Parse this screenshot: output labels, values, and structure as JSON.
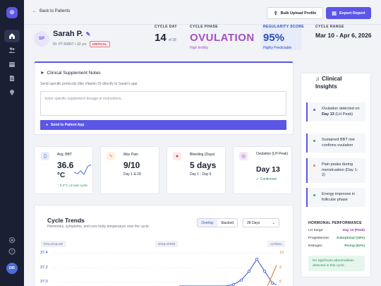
{
  "sidebar": {
    "logo_glyph": "⊕",
    "avatar": "DR"
  },
  "header": {
    "back": "Back to Patients",
    "bulk": "Bulk Upload Profile",
    "export": "Export Report"
  },
  "patient": {
    "initials": "SP",
    "name": "Sarah P.",
    "meta": "ID: PT-50807 • 32 yrs",
    "badge": "CRITICAL"
  },
  "stats": {
    "cycle_day": {
      "label": "CYCLE DAY",
      "value": "14",
      "suffix": "of 28"
    },
    "phase": {
      "label": "CYCLE PHASE",
      "value": "OVULATION",
      "sub": "High fertility"
    },
    "regularity": {
      "label": "REGULARITY SCORE",
      "value": "95%",
      "sub": "Highly Predictable"
    },
    "range": {
      "label": "CYCLE RANGE",
      "value": "Mar 10 - Apr 6, 2026"
    }
  },
  "notes": {
    "title": "Clinical Supplement Notes",
    "desc": "Send specific protocols (like Vitamin D) directly to Sarah's app.",
    "placeholder": "Enter specific supplement dosage or instructions...",
    "send": "Send to Patient App"
  },
  "cards": [
    {
      "label": "Avg. BBT",
      "value": "36.6",
      "unit": "°C",
      "foot": "↑ 0.3°C vs last cycle"
    },
    {
      "label": "Max Pain",
      "value": "9/10",
      "foot": "Day 1 & 28"
    },
    {
      "label": "Bleeding (Days)",
      "value": "5 days",
      "foot": "Day 1 - Day 5"
    },
    {
      "label": "Ovulation (LH Peak)",
      "value": "Day 13",
      "foot": "✓ Confirmed"
    }
  ],
  "trends": {
    "title": "Cycle Trends",
    "sub": "Hormones, symptoms, and core body temperature over the cycle.",
    "seg_overlay": "Overlay",
    "seg_stacked": "Stacked",
    "range": "28 Days",
    "phase_follicular": "FOLLICULAR",
    "phase_ovulation": "OVULATION",
    "phase_luteal": "LUTEAL"
  },
  "chart_data": {
    "type": "line",
    "y_left_ticks": [
      "37.4",
      "37.2",
      "37.0"
    ],
    "y_right_ticks": [
      "10",
      "8",
      "6"
    ],
    "series": [
      {
        "values": [
          0,
          0,
          0,
          0,
          0,
          0,
          0,
          0.5,
          2,
          5,
          9,
          5,
          1,
          0
        ]
      }
    ]
  },
  "insights": {
    "title_1": "Clinical",
    "title_2": "Insights",
    "items": [
      {
        "text_pre": "Ovulation detected on ",
        "bold": "Day 13",
        "text_post": " (LH Peak)",
        "color": "#5b56e6"
      },
      {
        "text": "Sustained BBT rise confirms ovulation",
        "color": "#2ea86a"
      },
      {
        "text": "Pain peaks during menstruation (Day 1-2)",
        "color": "#e08a2e"
      },
      {
        "text": "Energy improves in follicular phase",
        "color": "#2ea86a"
      }
    ],
    "hp_title": "HORMONAL PERFORMANCE",
    "hp": [
      {
        "k": "LH Surge:",
        "v": "Day 13 (Peak)",
        "color": "#9a2fb0"
      },
      {
        "k": "Progesterone:",
        "v": "Suboptimal (18%)",
        "color": "#2e8f5a"
      },
      {
        "k": "Estrogen:",
        "v": "Rising (62%)",
        "color": "#2e8f5a"
      }
    ],
    "ok": "No significant abnormalities detected in this cycle."
  }
}
